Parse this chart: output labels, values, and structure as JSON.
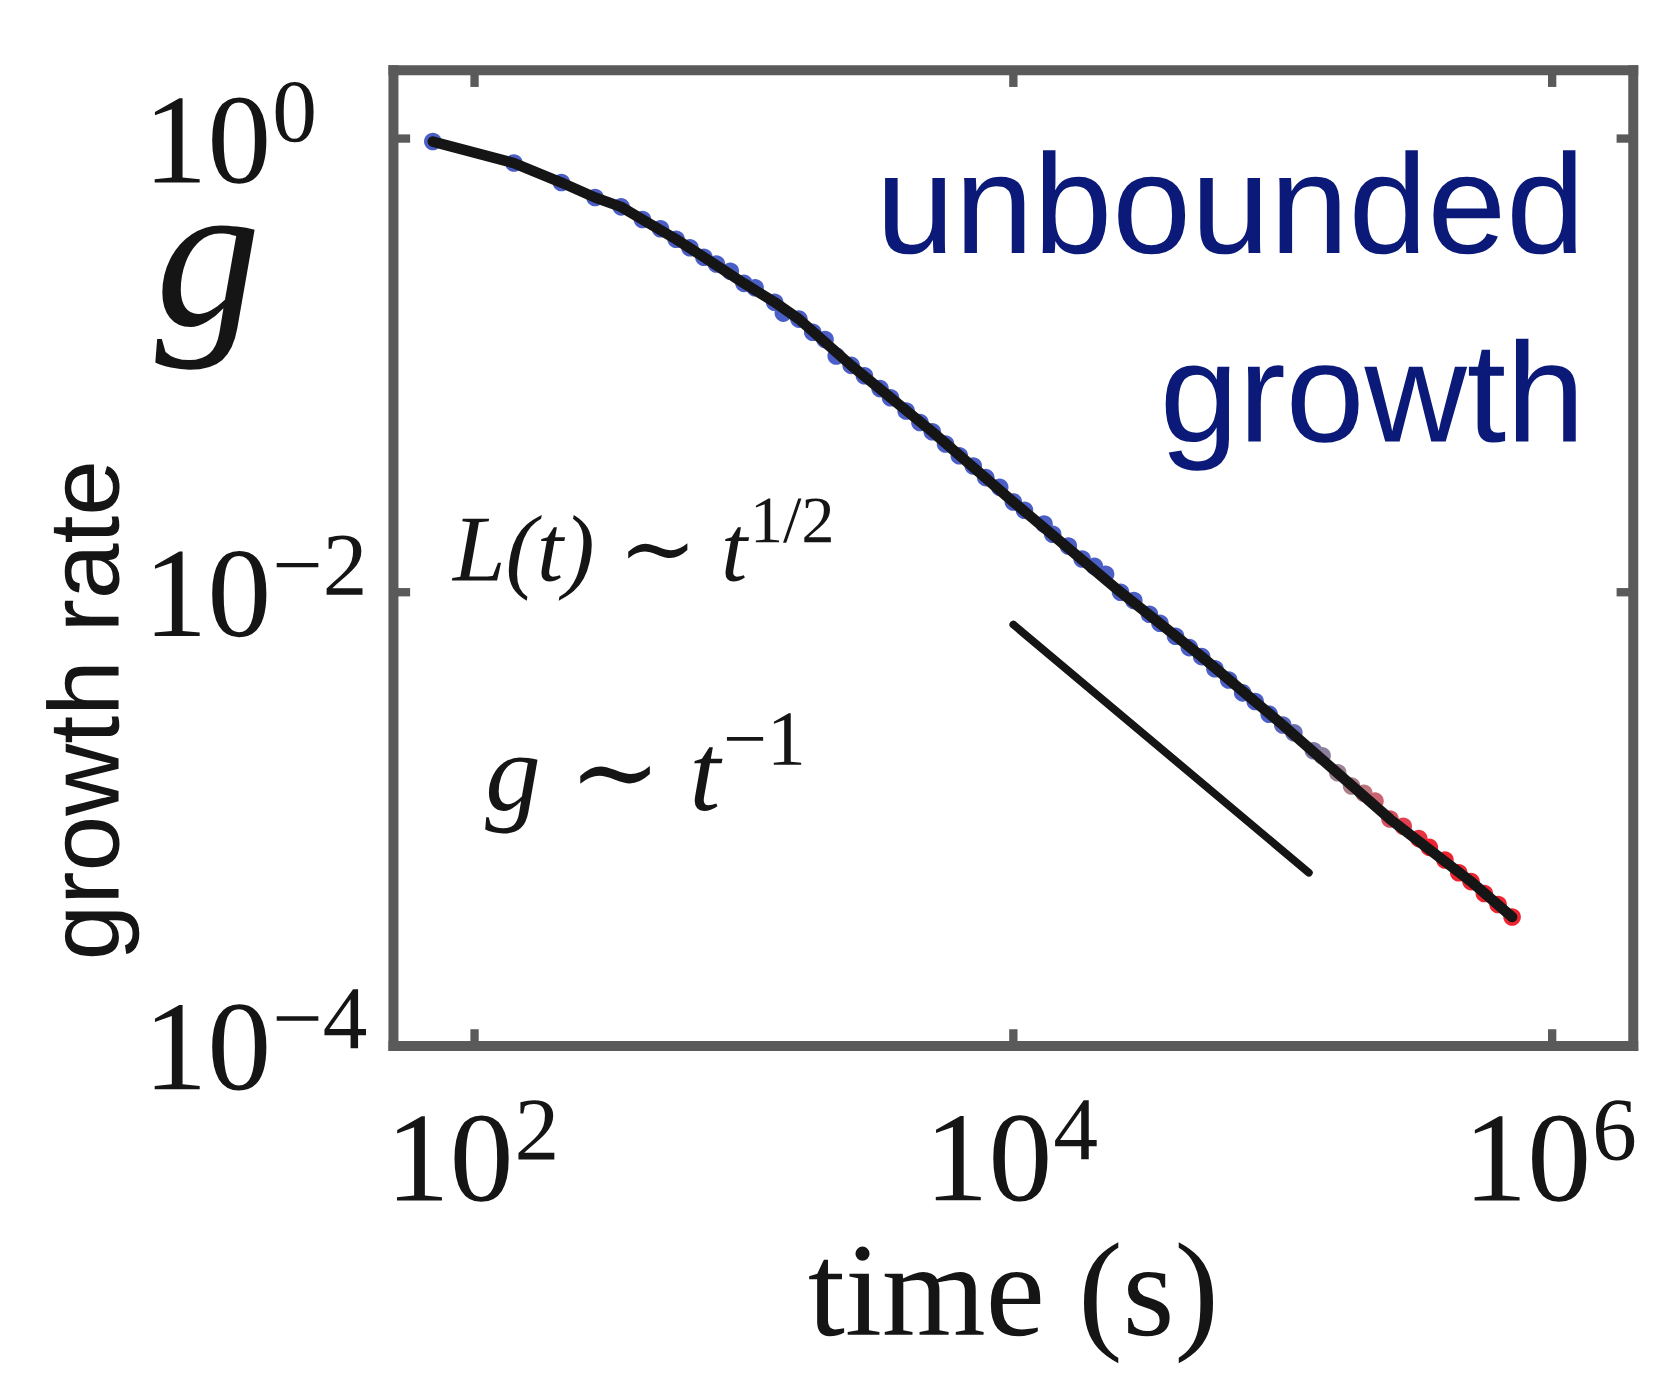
{
  "chart_data": {
    "type": "scatter",
    "xlabel": "time (s)",
    "ylabel": "growth rate",
    "annotations": [
      "g",
      "unbounded\ngrowth",
      "L(t) ∼ t$^{1/2}$",
      "g ∼ t$^{−1}$"
    ],
    "log": "xy",
    "xlim": [
      50,
      2000000
    ],
    "ylim": [
      0.0001,
      2
    ],
    "xticks": [
      {
        "value": 100,
        "label": "10$^{2}$"
      },
      {
        "value": 10000,
        "label": "10$^{4}$"
      },
      {
        "value": 1000000,
        "label": "10$^{6}$"
      }
    ],
    "yticks": [
      {
        "value": 0.0001,
        "label": "10$^{−4}$"
      },
      {
        "value": 0.01,
        "label": "10$^{−2}$"
      },
      {
        "value": 1,
        "label": "10$^{0}$"
      }
    ],
    "series": [
      {
        "marker": "circle",
        "x": [
          70,
          140,
          210,
          280,
          350,
          420,
          490,
          560,
          630,
          710,
          790,
          890,
          1000,
          1100,
          1300,
          1400,
          1600,
          1800,
          2000,
          2200,
          2500,
          2800,
          3200,
          3500,
          4000,
          4500,
          5000,
          5600,
          6300,
          7100,
          7900,
          8900,
          10000,
          11000,
          13000,
          14000,
          16000,
          18000,
          20000,
          22000,
          25000,
          28000,
          32000,
          35000,
          40000,
          45000,
          50000,
          56000,
          63000,
          71000,
          79000,
          89000,
          100000,
          110000,
          130000,
          140000,
          160000,
          180000,
          200000,
          220000,
          250000,
          280000,
          320000,
          350000,
          400000,
          450000,
          500000,
          560000,
          630000,
          710000
        ],
        "values": [
          0.97,
          0.78,
          0.64,
          0.55,
          0.5,
          0.44,
          0.4,
          0.36,
          0.33,
          0.3,
          0.28,
          0.26,
          0.23,
          0.22,
          0.19,
          0.17,
          0.16,
          0.14,
          0.13,
          0.11,
          0.1,
          0.09,
          0.079,
          0.072,
          0.063,
          0.056,
          0.051,
          0.045,
          0.04,
          0.036,
          0.032,
          0.029,
          0.025,
          0.023,
          0.02,
          0.018,
          0.016,
          0.014,
          0.013,
          0.012,
          0.01,
          0.0092,
          0.008,
          0.0073,
          0.0064,
          0.0057,
          0.0052,
          0.0046,
          0.0041,
          0.0036,
          0.0033,
          0.0029,
          0.0026,
          0.0024,
          0.002,
          0.0019,
          0.0016,
          0.0014,
          0.0013,
          0.0012,
          0.001,
          0.00093,
          0.00082,
          0.00075,
          0.00066,
          0.00058,
          0.00053,
          0.00047,
          0.00042,
          0.00037
        ],
        "colors": [
          "#4b5fc6",
          "#4b5fc6",
          "#4b5fc6",
          "#4b5fc6",
          "#4b5fc6",
          "#4b5fc6",
          "#4b5fc6",
          "#4b5fc6",
          "#4b5fc6",
          "#4b5fc6",
          "#4b5fc6",
          "#4b5fc6",
          "#4b5fc6",
          "#4b5fc6",
          "#4b5fc6",
          "#4b5fc6",
          "#4b5fc6",
          "#4b5fc6",
          "#4b5fc6",
          "#4b5fc6",
          "#4b5fc6",
          "#4b5fc6",
          "#4b5fc6",
          "#4b5fc6",
          "#4b5fc6",
          "#4b5fc6",
          "#4b5fc6",
          "#4b5fc6",
          "#4b5fc6",
          "#4b5fc6",
          "#4b5fc6",
          "#4b5fc6",
          "#4b5fc6",
          "#4b5fc6",
          "#4b5fc6",
          "#4b5fc6",
          "#4b5fc6",
          "#4b5fc6",
          "#4b5fc6",
          "#4b5fc6",
          "#4b5fc6",
          "#4b5fc6",
          "#4b5fc6",
          "#4b5fc6",
          "#4b5fc6",
          "#4b5fc6",
          "#4b5fc6",
          "#4b5fc6",
          "#4b5fc6",
          "#4b5fc6",
          "#4b5fc6",
          "#4b5fc6",
          "#5a66bc",
          "#6a70b2",
          "#7c7aa8",
          "#8c809e",
          "#9c8292",
          "#ac7e88",
          "#bc747c",
          "#ca6470",
          "#d65260",
          "#e04050",
          "#e83440",
          "#ee2530",
          "#ee2530",
          "#ee2530",
          "#ee2530",
          "#ee2530",
          "#ee2530",
          "#ee2530"
        ]
      },
      {
        "type": "line",
        "color": "#151515",
        "line_style": "solid",
        "x": [
          70,
          140,
          210,
          280,
          350,
          420,
          560,
          710,
          1000,
          1300,
          1600,
          2500,
          5000,
          10000,
          25000,
          50000,
          100000,
          250000,
          500000,
          710000
        ],
        "values": [
          0.97,
          0.78,
          0.64,
          0.55,
          0.5,
          0.44,
          0.36,
          0.3,
          0.23,
          0.19,
          0.16,
          0.1,
          0.051,
          0.025,
          0.01,
          0.0052,
          0.0026,
          0.001,
          0.00053,
          0.00037
        ]
      },
      {
        "type": "line",
        "color": "#151515",
        "line_style": "solid",
        "x": [
          10000,
          125000
        ],
        "values": [
          0.0072,
          0.00058
        ]
      }
    ]
  }
}
